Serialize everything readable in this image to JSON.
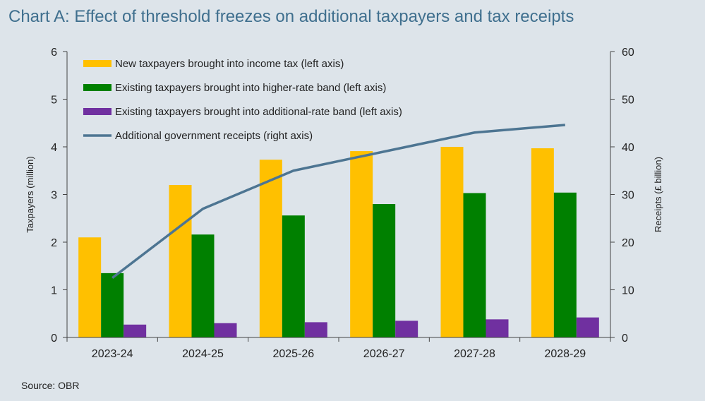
{
  "title": "Chart A: Effect of threshold freezes on additional taxpayers and tax receipts",
  "source": "Source: OBR",
  "chart_data": {
    "type": "bar",
    "categories": [
      "2023-24",
      "2024-25",
      "2025-26",
      "2026-27",
      "2027-28",
      "2028-29"
    ],
    "series": [
      {
        "name": "New taxpayers brought into income tax (left axis)",
        "type": "bar",
        "axis": "left",
        "color": "#ffc000",
        "values": [
          2.1,
          3.2,
          3.73,
          3.91,
          4.0,
          3.97
        ]
      },
      {
        "name": "Existing taxpayers brought into higher-rate band (left axis)",
        "type": "bar",
        "axis": "left",
        "color": "#008000",
        "values": [
          1.35,
          2.16,
          2.56,
          2.8,
          3.03,
          3.04
        ]
      },
      {
        "name": "Existing taxpayers brought into additional-rate band (left axis)",
        "type": "bar",
        "axis": "left",
        "color": "#7030a0",
        "values": [
          0.27,
          0.3,
          0.32,
          0.35,
          0.38,
          0.42
        ]
      },
      {
        "name": "Additional government receipts (right axis)",
        "type": "line",
        "axis": "right",
        "color": "#4d7592",
        "values": [
          12.5,
          27.0,
          35.0,
          39.0,
          43.0,
          44.6
        ]
      }
    ],
    "ylabel": "Taxpayers (million)",
    "y2label": "Receipts (£ billion)",
    "ylim": [
      0,
      6
    ],
    "y2lim": [
      0,
      60
    ],
    "yticks": [
      "0",
      "1",
      "2",
      "3",
      "4",
      "5",
      "6"
    ],
    "y2ticks": [
      "0",
      "10",
      "20",
      "30",
      "40",
      "50",
      "60"
    ],
    "legend_position": "top-left",
    "grid": false
  }
}
